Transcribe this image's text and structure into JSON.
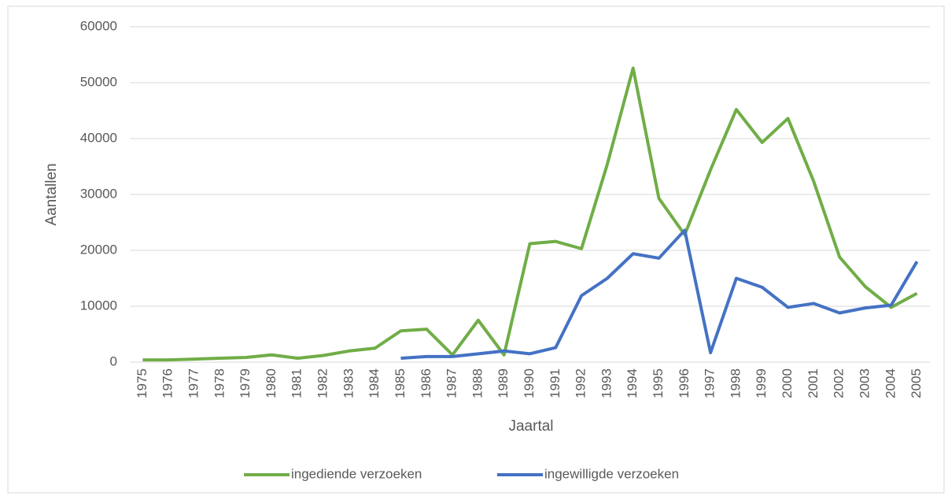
{
  "chart_data": {
    "type": "line",
    "x_label": "Jaartal",
    "y_label": "Aantallen",
    "categories": [
      "1975",
      "1976",
      "1977",
      "1978",
      "1979",
      "1980",
      "1981",
      "1982",
      "1983",
      "1984",
      "1985",
      "1986",
      "1987",
      "1988",
      "1989",
      "1990",
      "1991",
      "1992",
      "1993",
      "1994",
      "1995",
      "1996",
      "1997",
      "1998",
      "1999",
      "2000",
      "2001",
      "2002",
      "2003",
      "2004",
      "2005"
    ],
    "series": [
      {
        "name": "ingediende verzoeken",
        "color": "#70ad47",
        "values": [
          400,
          400,
          550,
          700,
          850,
          1300,
          700,
          1200,
          2000,
          2500,
          5600,
          5900,
          1300,
          7500,
          1300,
          21200,
          21600,
          20300,
          35400,
          52600,
          29300,
          22800,
          34400,
          45200,
          39300,
          43600,
          32300,
          18800,
          13500,
          9800,
          12300
        ]
      },
      {
        "name": "ingewilligde verzoeken",
        "color": "#4472c4",
        "values": [
          null,
          null,
          null,
          null,
          null,
          null,
          null,
          null,
          null,
          null,
          700,
          1000,
          1000,
          1500,
          2000,
          1500,
          2600,
          11900,
          15000,
          19400,
          18600,
          23600,
          1700,
          15000,
          13400,
          9800,
          10500,
          8800,
          9700,
          10200,
          18000
        ]
      }
    ],
    "ylim": [
      0,
      60000
    ],
    "yticks": [
      0,
      10000,
      20000,
      30000,
      40000,
      50000,
      60000
    ],
    "grid": true,
    "legend": "bottom"
  }
}
